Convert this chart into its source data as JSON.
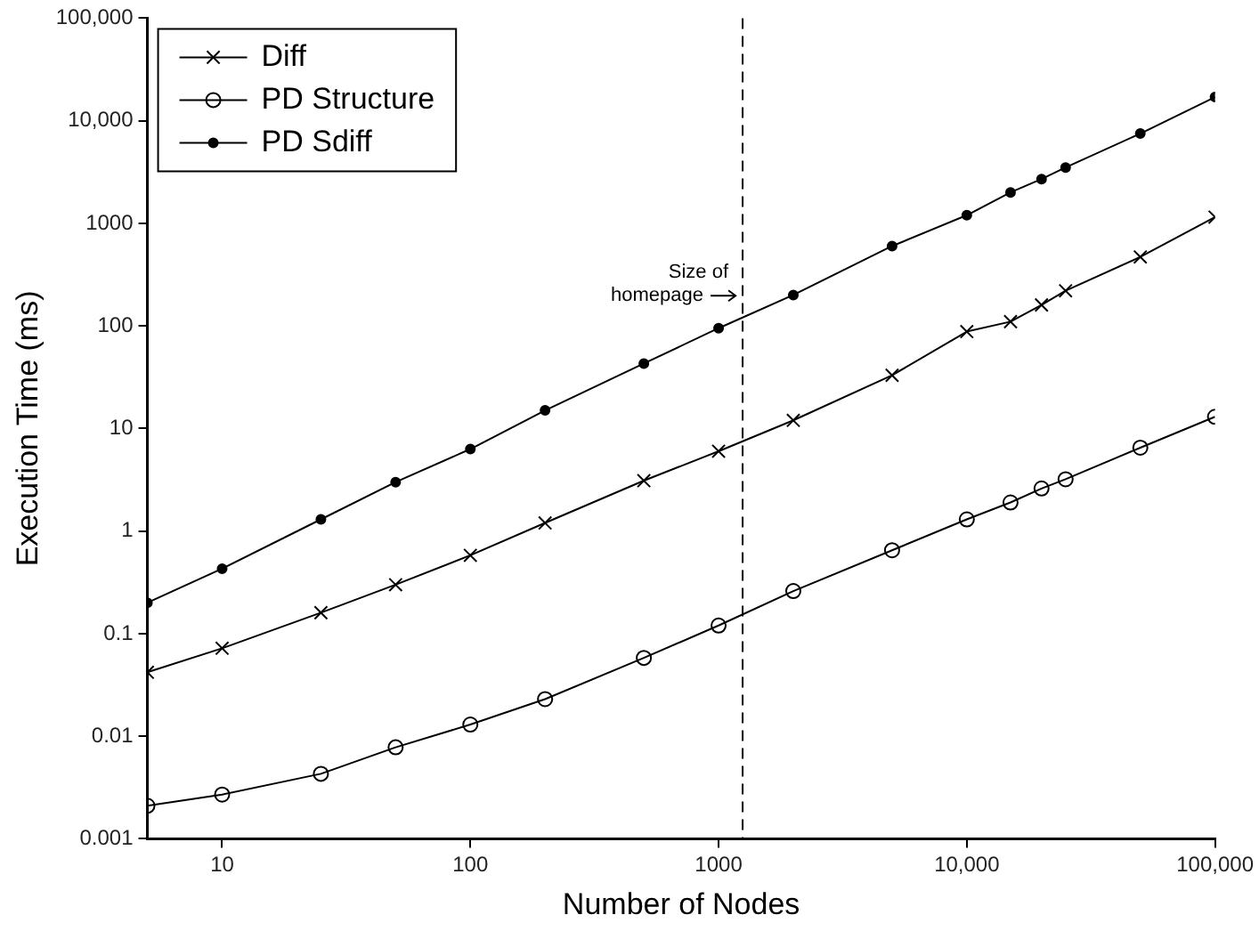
{
  "chart_data": {
    "type": "line",
    "xlabel": "Number of Nodes",
    "ylabel": "Execution Time (ms)",
    "x": [
      5,
      10,
      25,
      50,
      100,
      200,
      500,
      1000,
      2000,
      5000,
      10000,
      15000,
      20000,
      25000,
      50000,
      100000
    ],
    "series": [
      {
        "name": "Diff",
        "color": "#000000",
        "marker": "cross",
        "values": [
          0.042,
          0.072,
          0.16,
          0.3,
          0.58,
          1.2,
          3.1,
          6,
          12,
          33,
          88,
          110,
          160,
          220,
          470,
          1150
        ]
      },
      {
        "name": "PD Structure",
        "color": "#000000",
        "marker": "circle",
        "values": [
          0.0021,
          0.0027,
          0.0043,
          0.0078,
          0.013,
          0.023,
          0.058,
          0.12,
          0.26,
          0.65,
          1.3,
          1.9,
          2.6,
          3.2,
          6.5,
          13
        ]
      },
      {
        "name": "PD Sdiff",
        "color": "#000000",
        "marker": "dot",
        "values": [
          0.2,
          0.43,
          1.3,
          3,
          6.3,
          15,
          43,
          95,
          200,
          600,
          1200,
          2000,
          2700,
          3500,
          7500,
          17000
        ]
      }
    ],
    "log": "xy",
    "xlim": [
      5,
      100000
    ],
    "ylim": [
      0.001,
      100000
    ],
    "xticks": [
      10,
      100,
      1000,
      {
        "value": 10000,
        "label": "10,000"
      },
      {
        "value": 100000,
        "label": "100,000"
      }
    ],
    "yticks": [
      0.001,
      0.01,
      0.1,
      1,
      10,
      100,
      1000,
      {
        "value": 10000,
        "label": "10,000"
      },
      {
        "value": 100000,
        "label": "100,000"
      }
    ],
    "ref_lines": [
      {
        "axis": "x",
        "value": 1250,
        "label": "Size of homepage",
        "line_style": "dashed",
        "color": "#000000"
      }
    ],
    "grid": false,
    "legend": "top left",
    "line_style": "solid"
  }
}
